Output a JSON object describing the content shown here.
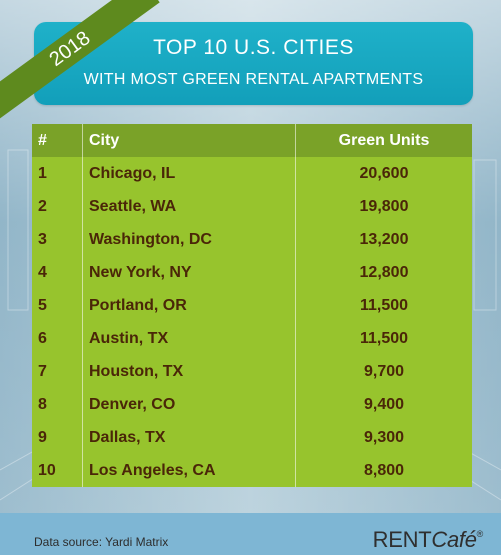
{
  "badge": {
    "year": "2018"
  },
  "header": {
    "title_line1": "TOP 10 U.S. CITIES",
    "title_line2": "WITH MOST GREEN RENTAL APARTMENTS"
  },
  "colors": {
    "header_bg": "#1fb1c9",
    "ribbon": "#5e8a1e",
    "table_header": "#7aa228",
    "table_body": "#97c42d",
    "table_text": "#4a2608"
  },
  "chart_data": {
    "type": "table",
    "title": "TOP 10 U.S. CITIES WITH MOST GREEN RENTAL APARTMENTS",
    "columns": [
      "#",
      "City",
      "Green Units"
    ],
    "rows": [
      [
        "1",
        "Chicago, IL",
        "20,600"
      ],
      [
        "2",
        "Seattle, WA",
        "19,800"
      ],
      [
        "3",
        "Washington, DC",
        "13,200"
      ],
      [
        "4",
        "New York, NY",
        "12,800"
      ],
      [
        "5",
        "Portland, OR",
        "11,500"
      ],
      [
        "6",
        "Austin, TX",
        "11,500"
      ],
      [
        "7",
        "Houston, TX",
        "9,700"
      ],
      [
        "8",
        "Denver, CO",
        "9,400"
      ],
      [
        "9",
        "Dallas, TX",
        "9,300"
      ],
      [
        "10",
        "Los Angeles, CA",
        "8,800"
      ]
    ]
  },
  "footer": {
    "source": "Data source: Yardi Matrix",
    "brand_rent": "RENT",
    "brand_cafe": "Café",
    "brand_mark": "®"
  }
}
